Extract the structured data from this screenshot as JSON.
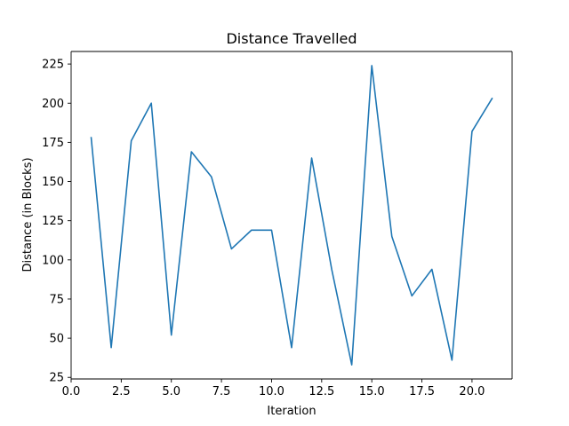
{
  "chart_data": {
    "type": "line",
    "title": "Distance Travelled",
    "xlabel": "Iteration",
    "ylabel": "Distance (in Blocks)",
    "xlim": [
      0,
      22
    ],
    "ylim": [
      24,
      233
    ],
    "xticks": [
      0,
      2.5,
      5,
      7.5,
      10,
      12.5,
      15,
      17.5,
      20
    ],
    "xtick_labels": [
      "0.0",
      "2.5",
      "5.0",
      "7.5",
      "10.0",
      "12.5",
      "15.0",
      "17.5",
      "20.0"
    ],
    "yticks": [
      25,
      50,
      75,
      100,
      125,
      150,
      175,
      200,
      225
    ],
    "ytick_labels": [
      "25",
      "50",
      "75",
      "100",
      "125",
      "150",
      "175",
      "200",
      "225"
    ],
    "grid": false,
    "series": [
      {
        "color": "#1f77b4",
        "x": [
          1,
          2,
          3,
          4,
          5,
          6,
          7,
          8,
          9,
          10,
          11,
          12,
          13,
          14,
          15,
          16,
          17,
          18,
          19,
          20,
          21
        ],
        "y": [
          178,
          44,
          176,
          200,
          52,
          169,
          153,
          107,
          119,
          119,
          44,
          165,
          94,
          33,
          224,
          115,
          77,
          94,
          36,
          182,
          203
        ]
      }
    ]
  }
}
